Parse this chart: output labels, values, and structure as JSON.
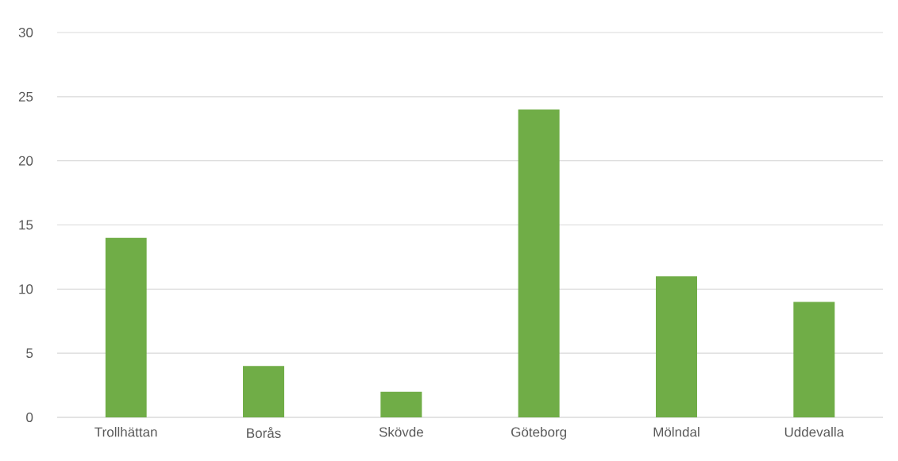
{
  "chart_data": {
    "type": "bar",
    "categories": [
      "Trollhättan",
      "Borås",
      "Skövde",
      "Göteborg",
      "Mölndal",
      "Uddevalla"
    ],
    "values": [
      14,
      4,
      2,
      24,
      11,
      9
    ],
    "color": "#70ad47",
    "ylim": [
      0,
      30
    ],
    "yticks": [
      0,
      5,
      10,
      15,
      20,
      25,
      30
    ],
    "grid": "y"
  }
}
